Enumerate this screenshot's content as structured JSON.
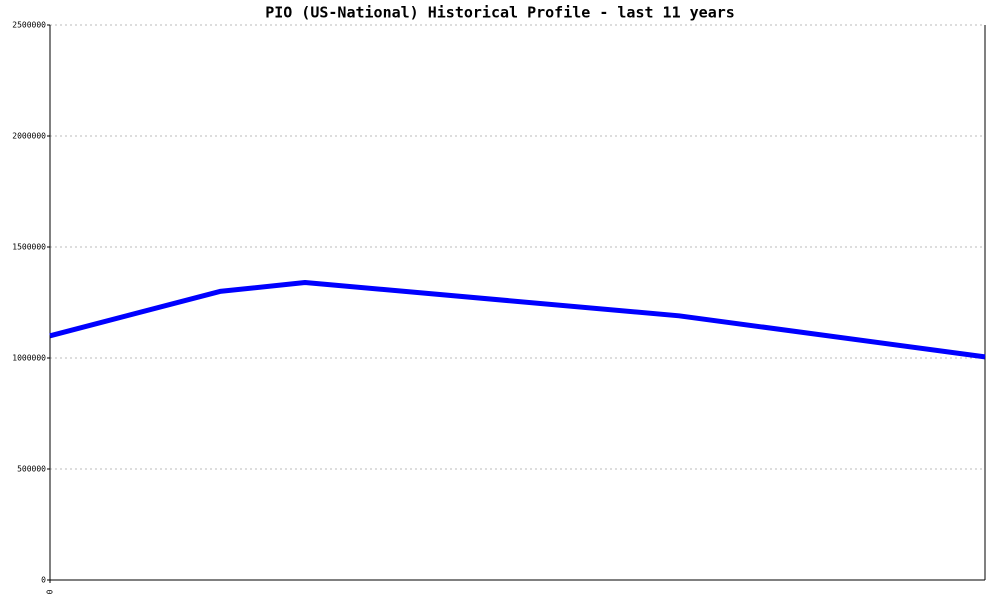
{
  "chart_data": {
    "type": "line",
    "title": "PIO (US-National) Historical Profile - last 11 years",
    "x": [
      0,
      2,
      3,
      7.4,
      11
    ],
    "series": [
      {
        "name": "PIO",
        "color": "#0000ff",
        "values": [
          1100000,
          1300000,
          1340000,
          1190000,
          1005000
        ]
      }
    ],
    "xlim": [
      0,
      11
    ],
    "xticks": [
      0
    ],
    "ylim": [
      0,
      2500000
    ],
    "yticks": [
      0,
      500000,
      1000000,
      1500000,
      2000000,
      2500000
    ],
    "grid": true
  }
}
